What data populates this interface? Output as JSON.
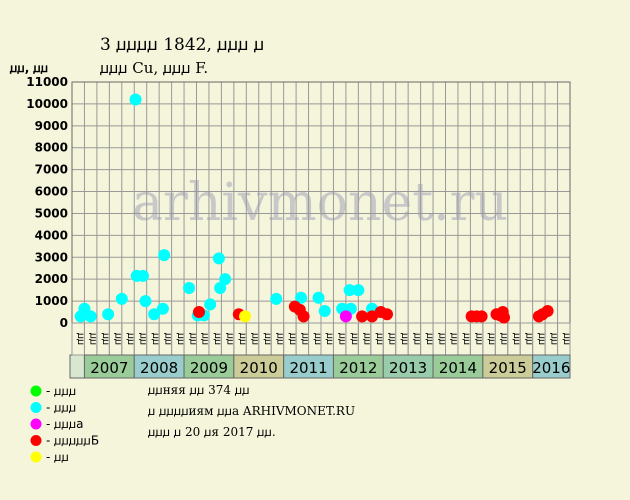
{
  "header": {
    "title": "3 ꙡꙡꙡꙡ 1842, ꙡꙡꙡ ꙡ",
    "subtitle": "ꙡꙡꙡ Cu, ꙡꙡꙡ F.",
    "units": "ꙡꙡ, ꙡꙡ"
  },
  "watermark": "arhivmonet.ru",
  "legend": [
    {
      "color": "#00ff00",
      "label": "- ꙡꙡꙡ"
    },
    {
      "color": "#00ffff",
      "label": "- ꙡꙡꙡ"
    },
    {
      "color": "#ff00ff",
      "label": "- ꙡꙡꙡa"
    },
    {
      "color": "#ff0000",
      "label": "- ꙡꙡꙡꙡꙡБ"
    },
    {
      "color": "#ffff00",
      "label": "- ꙡꙡ"
    }
  ],
  "notes": [
    "ꙡꙡняя ꙡꙡ 374 ꙡꙡ",
    "ꙡ ꙡꙡꙡꙡиям ꙡꙡa ARHIVMONET.RU",
    "ꙡꙡꙡ ꙡ 20 ꙡя 2017 ꙡꙡ."
  ],
  "chart_data": {
    "type": "scatter",
    "yticks": [
      0,
      1000,
      2000,
      3000,
      4000,
      5000,
      6000,
      7000,
      8000,
      9000,
      10000,
      11000
    ],
    "ylim": [
      0,
      11000
    ],
    "grade_labels": [
      "ꙡꙡ",
      "ꙡꙡ",
      "ꙡꙡ",
      "ꙡꙡ"
    ],
    "years": [
      {
        "label": "2007",
        "color": "#99cc99"
      },
      {
        "label": "2008",
        "color": "#99cccc"
      },
      {
        "label": "2009",
        "color": "#99cc99"
      },
      {
        "label": "2010",
        "color": "#cccc99"
      },
      {
        "label": "2011",
        "color": "#99cccc"
      },
      {
        "label": "2012",
        "color": "#99cc99"
      },
      {
        "label": "2013",
        "color": "#99ccaa"
      },
      {
        "label": "2014",
        "color": "#99cc99"
      },
      {
        "label": "2015",
        "color": "#cccc99"
      },
      {
        "label": "2016",
        "color": "#99cccc"
      }
    ],
    "colors": {
      "cyan": "#00ffff",
      "red": "#ff0000",
      "magenta": "#ff00ff",
      "yellow": "#ffff00",
      "green": "#00ff00"
    },
    "points": [
      {
        "x": 0.7,
        "y": 300,
        "c": "cyan"
      },
      {
        "x": 1.0,
        "y": 650,
        "c": "cyan"
      },
      {
        "x": 1.5,
        "y": 300,
        "c": "cyan"
      },
      {
        "x": 2.9,
        "y": 400,
        "c": "cyan"
      },
      {
        "x": 4.0,
        "y": 1100,
        "c": "cyan"
      },
      {
        "x": 5.1,
        "y": 10200,
        "c": "cyan"
      },
      {
        "x": 5.2,
        "y": 2150,
        "c": "cyan"
      },
      {
        "x": 5.7,
        "y": 2150,
        "c": "cyan"
      },
      {
        "x": 5.9,
        "y": 1000,
        "c": "cyan"
      },
      {
        "x": 6.6,
        "y": 400,
        "c": "cyan"
      },
      {
        "x": 7.3,
        "y": 650,
        "c": "cyan"
      },
      {
        "x": 7.4,
        "y": 3100,
        "c": "cyan"
      },
      {
        "x": 9.4,
        "y": 1600,
        "c": "cyan"
      },
      {
        "x": 10.1,
        "y": 350,
        "c": "cyan"
      },
      {
        "x": 10.6,
        "y": 350,
        "c": "cyan"
      },
      {
        "x": 11.1,
        "y": 850,
        "c": "cyan"
      },
      {
        "x": 11.8,
        "y": 2950,
        "c": "cyan"
      },
      {
        "x": 11.9,
        "y": 1600,
        "c": "cyan"
      },
      {
        "x": 12.3,
        "y": 2000,
        "c": "cyan"
      },
      {
        "x": 16.4,
        "y": 1100,
        "c": "cyan"
      },
      {
        "x": 18.4,
        "y": 1150,
        "c": "cyan"
      },
      {
        "x": 19.8,
        "y": 1150,
        "c": "cyan"
      },
      {
        "x": 20.3,
        "y": 550,
        "c": "cyan"
      },
      {
        "x": 21.7,
        "y": 650,
        "c": "cyan"
      },
      {
        "x": 22.0,
        "y": 400,
        "c": "cyan"
      },
      {
        "x": 22.3,
        "y": 1500,
        "c": "cyan"
      },
      {
        "x": 22.4,
        "y": 650,
        "c": "cyan"
      },
      {
        "x": 23.0,
        "y": 1500,
        "c": "cyan"
      },
      {
        "x": 24.1,
        "y": 650,
        "c": "cyan"
      },
      {
        "x": 10.2,
        "y": 500,
        "c": "red"
      },
      {
        "x": 13.4,
        "y": 400,
        "c": "red"
      },
      {
        "x": 17.9,
        "y": 750,
        "c": "red"
      },
      {
        "x": 18.3,
        "y": 600,
        "c": "red"
      },
      {
        "x": 18.6,
        "y": 300,
        "c": "red"
      },
      {
        "x": 23.3,
        "y": 300,
        "c": "red"
      },
      {
        "x": 24.1,
        "y": 300,
        "c": "red"
      },
      {
        "x": 24.8,
        "y": 500,
        "c": "red"
      },
      {
        "x": 25.3,
        "y": 400,
        "c": "red"
      },
      {
        "x": 32.1,
        "y": 300,
        "c": "red"
      },
      {
        "x": 32.5,
        "y": 300,
        "c": "red"
      },
      {
        "x": 32.9,
        "y": 300,
        "c": "red"
      },
      {
        "x": 34.1,
        "y": 400,
        "c": "red"
      },
      {
        "x": 34.4,
        "y": 350,
        "c": "red"
      },
      {
        "x": 34.6,
        "y": 500,
        "c": "red"
      },
      {
        "x": 34.7,
        "y": 250,
        "c": "red"
      },
      {
        "x": 37.5,
        "y": 300,
        "c": "red"
      },
      {
        "x": 37.8,
        "y": 400,
        "c": "red"
      },
      {
        "x": 38.2,
        "y": 550,
        "c": "red"
      },
      {
        "x": 22.0,
        "y": 300,
        "c": "magenta"
      },
      {
        "x": 13.9,
        "y": 300,
        "c": "yellow"
      }
    ]
  }
}
